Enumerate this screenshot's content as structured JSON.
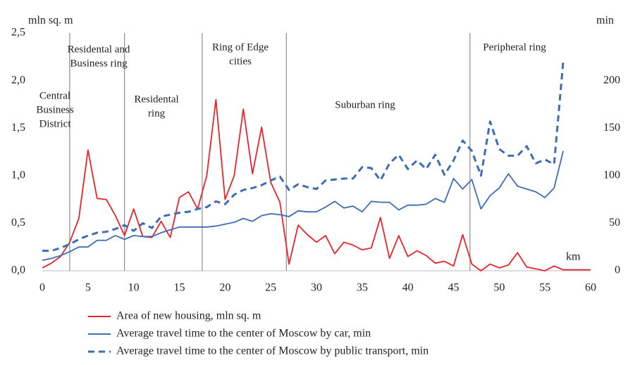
{
  "chart_data": {
    "type": "line",
    "y_label": "mln sq. m",
    "y2_label": "min",
    "x_label": "km",
    "xlim": [
      0,
      60
    ],
    "xticks": [
      0,
      5,
      10,
      15,
      20,
      25,
      30,
      35,
      40,
      45,
      50,
      55,
      60
    ],
    "ylim": [
      0,
      2.5
    ],
    "yticks": [
      {
        "value": 0,
        "label": "0,0"
      },
      {
        "value": 0.5,
        "label": "0,5"
      },
      {
        "value": 1,
        "label": "1,0"
      },
      {
        "value": 1.5,
        "label": "1,5"
      },
      {
        "value": 2,
        "label": "2,0"
      },
      {
        "value": 2.5,
        "label": "2,5"
      }
    ],
    "y2lim": [
      0,
      250
    ],
    "y2ticks": [
      0,
      50,
      100,
      150,
      200
    ],
    "zone_boundaries": [
      3,
      9,
      17.5,
      26.7,
      46.8
    ],
    "annotations": [
      [
        "Central",
        "Business",
        "District"
      ],
      [
        "Residental  and",
        "Business  ring"
      ],
      [
        "Residental",
        "ring"
      ],
      [
        "Ring  of Edge",
        "cities"
      ],
      [
        "Suburban  ring"
      ],
      [
        "Peripheral  ring"
      ]
    ],
    "series": [
      {
        "name": "Area of new housing, mln sq. m",
        "color": "#e8242a",
        "dash": false,
        "x": [
          0,
          1,
          2,
          3,
          4,
          5,
          6,
          7,
          8,
          9,
          10,
          11,
          12,
          13,
          14,
          15,
          16,
          17,
          18,
          19,
          20,
          21,
          22,
          23,
          24,
          25,
          26,
          27,
          28,
          29,
          30,
          31,
          32,
          33,
          34,
          35,
          36,
          37,
          38,
          39,
          40,
          41,
          42,
          43,
          44,
          45,
          46,
          47,
          48,
          49,
          50,
          51,
          52,
          53,
          54,
          55,
          56,
          57,
          58,
          59,
          60
        ],
        "values": [
          0.03,
          0.08,
          0.15,
          0.3,
          0.55,
          1.27,
          0.76,
          0.75,
          0.58,
          0.37,
          0.65,
          0.36,
          0.35,
          0.52,
          0.35,
          0.77,
          0.83,
          0.65,
          1.0,
          1.8,
          0.75,
          1.0,
          1.7,
          1.02,
          1.51,
          0.93,
          0.72,
          0.07,
          0.48,
          0.38,
          0.3,
          0.37,
          0.18,
          0.3,
          0.27,
          0.22,
          0.24,
          0.56,
          0.13,
          0.37,
          0.15,
          0.21,
          0.16,
          0.08,
          0.1,
          0.05,
          0.38,
          0.07,
          0.0,
          0.07,
          0.03,
          0.06,
          0.19,
          0.04,
          0.02,
          0.0,
          0.05,
          0.01,
          0.01,
          0.01,
          0.01
        ]
      },
      {
        "name": "Average travel time to the center of Moscow by car, min",
        "color": "#3d6db3",
        "dash": false,
        "axis": "y2",
        "x": [
          0,
          1,
          2,
          3,
          4,
          5,
          6,
          7,
          8,
          9,
          10,
          11,
          12,
          13,
          14,
          15,
          16,
          17,
          18,
          19,
          20,
          21,
          22,
          23,
          24,
          25,
          26,
          27,
          28,
          29,
          30,
          31,
          32,
          33,
          34,
          35,
          36,
          37,
          38,
          39,
          40,
          41,
          42,
          43,
          44,
          45,
          46,
          47,
          48,
          49,
          50,
          51,
          52,
          53,
          54,
          55,
          56,
          57
        ],
        "values": [
          11,
          13,
          16,
          20,
          25,
          25,
          32,
          32,
          37,
          33,
          37,
          36,
          36,
          40,
          43,
          46,
          46,
          46,
          46,
          47,
          49,
          51,
          55,
          52,
          58,
          60,
          59,
          57,
          63,
          62,
          62,
          67,
          73,
          66,
          68,
          62,
          73,
          72,
          72,
          64,
          69,
          69,
          70,
          76,
          72,
          97,
          86,
          96,
          65,
          79,
          87,
          102,
          89,
          86,
          83,
          77,
          87,
          126
        ]
      },
      {
        "name": "Average travel time to the center of Moscow by public transport, min",
        "color": "#3d6db3",
        "dash": true,
        "axis": "y2",
        "x": [
          0,
          1,
          2,
          3,
          4,
          5,
          6,
          7,
          8,
          9,
          10,
          11,
          12,
          13,
          14,
          15,
          16,
          17,
          18,
          19,
          20,
          21,
          22,
          23,
          24,
          25,
          26,
          27,
          28,
          29,
          30,
          31,
          32,
          33,
          34,
          35,
          36,
          37,
          38,
          39,
          40,
          41,
          42,
          43,
          44,
          45,
          46,
          47,
          48,
          49,
          50,
          51,
          52,
          53,
          54,
          55,
          56,
          57
        ],
        "values": [
          21,
          21,
          24,
          28,
          33,
          37,
          40,
          41,
          44,
          48,
          42,
          50,
          45,
          57,
          59,
          61,
          62,
          65,
          67,
          73,
          70,
          80,
          85,
          87,
          90,
          95,
          99,
          85,
          91,
          88,
          86,
          95,
          96,
          97,
          97,
          109,
          108,
          95,
          113,
          122,
          107,
          116,
          107,
          122,
          101,
          116,
          137,
          126,
          100,
          157,
          128,
          121,
          121,
          131,
          113,
          117,
          112,
          220
        ]
      }
    ]
  }
}
